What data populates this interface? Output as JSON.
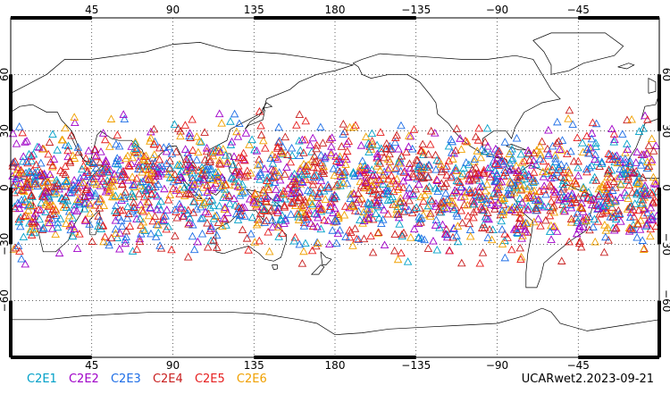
{
  "map": {
    "projection": "cylindrical equidistant, centered on 180",
    "lon_range": [
      0,
      360
    ],
    "lat_range": [
      -90,
      90
    ],
    "grid": "dotted every 45 deg lon, 30 deg lat",
    "top_lon_labels": [
      "45",
      "90",
      "135",
      "180",
      "−135",
      "−90",
      "−45"
    ],
    "bottom_lon_labels": [
      "45",
      "90",
      "135",
      "180",
      "−135",
      "−90",
      "−45"
    ],
    "left_lat_labels": [
      "60",
      "30",
      "0",
      "−30",
      "−60"
    ],
    "right_lat_labels": [
      "60",
      "30",
      "0",
      "−30",
      "−60"
    ],
    "marker": "open-triangle",
    "observation_band_lat": [
      -45,
      45
    ]
  },
  "legend": {
    "items": [
      {
        "label": "C2E1",
        "color": "#00a0c8"
      },
      {
        "label": "C2E2",
        "color": "#a000c8"
      },
      {
        "label": "C2E3",
        "color": "#1e6ee6"
      },
      {
        "label": "C2E4",
        "color": "#c81e1e"
      },
      {
        "label": "C2E5",
        "color": "#e61e1e"
      },
      {
        "label": "C2E6",
        "color": "#f0a000"
      }
    ]
  },
  "stamp": {
    "text": "UCARwet2.2023-09-21"
  },
  "chart_data": {
    "type": "scatter",
    "title": "",
    "series": [
      {
        "name": "C2E1",
        "color": "#00a0c8"
      },
      {
        "name": "C2E2",
        "color": "#a000c8"
      },
      {
        "name": "C2E3",
        "color": "#1e6ee6"
      },
      {
        "name": "C2E4",
        "color": "#c81e1e"
      },
      {
        "name": "C2E5",
        "color": "#e61e1e"
      },
      {
        "name": "C2E6",
        "color": "#f0a000"
      }
    ],
    "xlim": [
      0,
      360
    ],
    "ylim": [
      -90,
      90
    ],
    "grid": true
  }
}
